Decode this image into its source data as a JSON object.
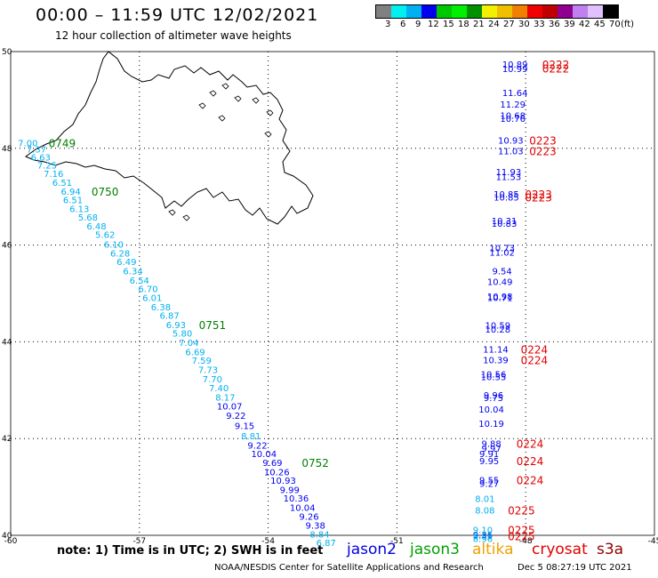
{
  "header": {
    "title": "00:00 – 11:59 UTC 12/02/2021",
    "subtitle": "12 hour collection of altimeter wave heights"
  },
  "legend": {
    "unit": "(ft)",
    "colors": [
      "#808080",
      "#00f0f0",
      "#00b0f0",
      "#0000f0",
      "#00c800",
      "#00f000",
      "#009000",
      "#f0f000",
      "#f0c000",
      "#f08000",
      "#f00000",
      "#c00000",
      "#900090",
      "#c080f0",
      "#e0c0ff",
      "#000000"
    ],
    "labels": [
      "3",
      "6",
      "9",
      "12",
      "15",
      "18",
      "21",
      "24",
      "27",
      "30",
      "33",
      "36",
      "39",
      "42",
      "45",
      "70"
    ]
  },
  "map": {
    "lat_range": [
      40,
      50
    ],
    "lon_range": [
      -60,
      -45
    ],
    "lat_ticks": [
      {
        "value": 50,
        "label": "50"
      },
      {
        "value": 48,
        "label": "48"
      },
      {
        "value": 46,
        "label": "46"
      },
      {
        "value": 44,
        "label": "44"
      },
      {
        "value": 42,
        "label": "42"
      },
      {
        "value": 40,
        "label": "40"
      }
    ],
    "lon_ticks": [
      {
        "value": -60,
        "label": "-60"
      },
      {
        "value": -57,
        "label": "-57"
      },
      {
        "value": -54,
        "label": "-54"
      },
      {
        "value": -51,
        "label": "-51"
      },
      {
        "value": -48,
        "label": "-48"
      },
      {
        "value": -45,
        "label": "-45"
      }
    ]
  },
  "tracks": {
    "west_cyan_color": "#00b0f0",
    "west_blue_color": "#0000f0",
    "east_blue_color": "#0000f0",
    "east_cyan_color": "#00b0f0",
    "west_cyan": [
      {
        "lat": 48.1,
        "lon": -59.6,
        "v": "7.00"
      },
      {
        "lat": 47.97,
        "lon": -59.4,
        "v": "7.37"
      },
      {
        "lat": 47.8,
        "lon": -59.3,
        "v": "6.63"
      },
      {
        "lat": 47.64,
        "lon": -59.15,
        "v": "7.25"
      },
      {
        "lat": 47.46,
        "lon": -59.0,
        "v": "7.16"
      },
      {
        "lat": 47.28,
        "lon": -58.8,
        "v": "6.51"
      },
      {
        "lat": 47.1,
        "lon": -58.6,
        "v": "6.94"
      },
      {
        "lat": 46.92,
        "lon": -58.55,
        "v": "6.51"
      },
      {
        "lat": 46.74,
        "lon": -58.4,
        "v": "6.13"
      },
      {
        "lat": 46.56,
        "lon": -58.2,
        "v": "5.68"
      },
      {
        "lat": 46.38,
        "lon": -58.0,
        "v": "6.48"
      },
      {
        "lat": 46.2,
        "lon": -57.8,
        "v": "5.62"
      },
      {
        "lat": 46.0,
        "lon": -57.6,
        "v": "6.10"
      },
      {
        "lat": 45.82,
        "lon": -57.45,
        "v": "6.28"
      },
      {
        "lat": 45.64,
        "lon": -57.3,
        "v": "6.49"
      },
      {
        "lat": 45.45,
        "lon": -57.15,
        "v": "6.34"
      },
      {
        "lat": 45.26,
        "lon": -57.0,
        "v": "6.54"
      },
      {
        "lat": 45.08,
        "lon": -56.8,
        "v": "6.70"
      },
      {
        "lat": 44.9,
        "lon": -56.7,
        "v": "6.01"
      },
      {
        "lat": 44.71,
        "lon": -56.5,
        "v": "6.38"
      },
      {
        "lat": 44.53,
        "lon": -56.3,
        "v": "6.87"
      },
      {
        "lat": 44.34,
        "lon": -56.15,
        "v": "6.93"
      },
      {
        "lat": 44.16,
        "lon": -56.0,
        "v": "5.80"
      },
      {
        "lat": 43.97,
        "lon": -55.85,
        "v": "7.04"
      },
      {
        "lat": 43.78,
        "lon": -55.7,
        "v": "6.69"
      },
      {
        "lat": 43.6,
        "lon": -55.55,
        "v": "7.59"
      },
      {
        "lat": 43.41,
        "lon": -55.4,
        "v": "7.73"
      },
      {
        "lat": 43.22,
        "lon": -55.3,
        "v": "7.70"
      },
      {
        "lat": 43.03,
        "lon": -55.15,
        "v": "7.40"
      },
      {
        "lat": 42.84,
        "lon": -55.0,
        "v": "8.17"
      },
      {
        "lat": 42.04,
        "lon": -54.4,
        "v": "8.81"
      }
    ],
    "west_blue": [
      {
        "lat": 42.66,
        "lon": -54.9,
        "v": "10.07"
      },
      {
        "lat": 42.46,
        "lon": -54.75,
        "v": "9.22"
      },
      {
        "lat": 42.25,
        "lon": -54.55,
        "v": "9.15"
      },
      {
        "lat": 41.85,
        "lon": -54.25,
        "v": "9.22"
      },
      {
        "lat": 41.67,
        "lon": -54.1,
        "v": "10.04"
      },
      {
        "lat": 41.49,
        "lon": -53.9,
        "v": "9.69"
      },
      {
        "lat": 41.3,
        "lon": -53.8,
        "v": "10.26"
      },
      {
        "lat": 41.12,
        "lon": -53.65,
        "v": "10.93"
      },
      {
        "lat": 40.93,
        "lon": -53.5,
        "v": "9.99"
      },
      {
        "lat": 40.75,
        "lon": -53.35,
        "v": "10.36"
      },
      {
        "lat": 40.56,
        "lon": -53.2,
        "v": "10.04"
      },
      {
        "lat": 40.38,
        "lon": -53.05,
        "v": "9.26"
      },
      {
        "lat": 40.19,
        "lon": -52.9,
        "v": "9.38"
      }
    ],
    "west_tail_cyan": [
      {
        "lat": 40.01,
        "lon": -52.8,
        "v": "8.84"
      },
      {
        "lat": 39.83,
        "lon": -52.65,
        "v": "6.87"
      }
    ],
    "east_blue": [
      {
        "lat": 49.72,
        "lon": -48.25,
        "v": "10.89"
      },
      {
        "lat": 49.63,
        "lon": -48.25,
        "v": "10.99"
      },
      {
        "lat": 49.14,
        "lon": -48.25,
        "v": "11.64"
      },
      {
        "lat": 48.9,
        "lon": -48.3,
        "v": "11.29"
      },
      {
        "lat": 48.67,
        "lon": -48.3,
        "v": "10.68"
      },
      {
        "lat": 48.6,
        "lon": -48.3,
        "v": "10.76"
      },
      {
        "lat": 48.15,
        "lon": -48.35,
        "v": "10.93"
      },
      {
        "lat": 47.93,
        "lon": -48.35,
        "v": "11.03"
      },
      {
        "lat": 47.5,
        "lon": -48.4,
        "v": "11.93"
      },
      {
        "lat": 47.4,
        "lon": -48.4,
        "v": "11.53"
      },
      {
        "lat": 47.04,
        "lon": -48.45,
        "v": "10.85"
      },
      {
        "lat": 46.98,
        "lon": -48.45,
        "v": "10.85"
      },
      {
        "lat": 46.49,
        "lon": -48.5,
        "v": "10.31"
      },
      {
        "lat": 46.43,
        "lon": -48.5,
        "v": "10.83"
      },
      {
        "lat": 45.93,
        "lon": -48.55,
        "v": "10.73"
      },
      {
        "lat": 45.84,
        "lon": -48.55,
        "v": "11.02"
      },
      {
        "lat": 45.45,
        "lon": -48.55,
        "v": "9.54"
      },
      {
        "lat": 45.23,
        "lon": -48.6,
        "v": "10.49"
      },
      {
        "lat": 44.93,
        "lon": -48.6,
        "v": "10.98"
      },
      {
        "lat": 44.9,
        "lon": -48.6,
        "v": "10.71"
      },
      {
        "lat": 44.33,
        "lon": -48.65,
        "v": "10.59"
      },
      {
        "lat": 44.25,
        "lon": -48.65,
        "v": "10.28"
      },
      {
        "lat": 43.83,
        "lon": -48.7,
        "v": "11.14"
      },
      {
        "lat": 43.61,
        "lon": -48.7,
        "v": "10.39"
      },
      {
        "lat": 43.32,
        "lon": -48.75,
        "v": "10.56"
      },
      {
        "lat": 43.26,
        "lon": -48.75,
        "v": "10.55"
      },
      {
        "lat": 42.89,
        "lon": -48.75,
        "v": "9.96"
      },
      {
        "lat": 42.83,
        "lon": -48.75,
        "v": "9.75"
      },
      {
        "lat": 42.59,
        "lon": -48.8,
        "v": "10.04"
      },
      {
        "lat": 42.3,
        "lon": -48.8,
        "v": "10.19"
      },
      {
        "lat": 41.88,
        "lon": -48.8,
        "v": "9.88"
      },
      {
        "lat": 41.78,
        "lon": -48.8,
        "v": "9.97"
      },
      {
        "lat": 41.67,
        "lon": -48.85,
        "v": "9.91"
      },
      {
        "lat": 41.53,
        "lon": -48.85,
        "v": "9.95"
      },
      {
        "lat": 41.13,
        "lon": -48.85,
        "v": "9.55"
      },
      {
        "lat": 41.06,
        "lon": -48.85,
        "v": "9.27"
      },
      {
        "lat": 40.0,
        "lon": -49.0,
        "v": "9.36"
      }
    ],
    "east_cyan": [
      {
        "lat": 40.74,
        "lon": -48.95,
        "v": "8.01"
      },
      {
        "lat": 40.51,
        "lon": -48.95,
        "v": "8.08"
      },
      {
        "lat": 40.1,
        "lon": -49.0,
        "v": "9.10"
      },
      {
        "lat": 39.97,
        "lon": -49.0,
        "v": "8.89"
      },
      {
        "lat": 39.92,
        "lon": -49.0,
        "v": "8.96"
      }
    ]
  },
  "time_marks": {
    "green_color": "#008000",
    "red_color": "#e00000",
    "green": [
      {
        "lat": 48.1,
        "lon": -58.8,
        "v": "0749"
      },
      {
        "lat": 47.1,
        "lon": -57.8,
        "v": "0750"
      },
      {
        "lat": 44.34,
        "lon": -55.3,
        "v": "0751"
      },
      {
        "lat": 41.49,
        "lon": -52.9,
        "v": "0752"
      }
    ],
    "red": [
      {
        "lat": 49.72,
        "lon": -47.3,
        "v": "0222"
      },
      {
        "lat": 49.64,
        "lon": -47.3,
        "v": "0222"
      },
      {
        "lat": 48.15,
        "lon": -47.6,
        "v": "0223"
      },
      {
        "lat": 47.93,
        "lon": -47.6,
        "v": "0223"
      },
      {
        "lat": 47.04,
        "lon": -47.7,
        "v": "0223"
      },
      {
        "lat": 46.98,
        "lon": -47.7,
        "v": "0223"
      },
      {
        "lat": 43.83,
        "lon": -47.8,
        "v": "0224"
      },
      {
        "lat": 43.61,
        "lon": -47.8,
        "v": "0224"
      },
      {
        "lat": 41.88,
        "lon": -47.9,
        "v": "0224"
      },
      {
        "lat": 41.53,
        "lon": -47.9,
        "v": "0224"
      },
      {
        "lat": 41.13,
        "lon": -47.9,
        "v": "0224"
      },
      {
        "lat": 40.51,
        "lon": -48.1,
        "v": "0225"
      },
      {
        "lat": 40.1,
        "lon": -48.1,
        "v": "0225"
      },
      {
        "lat": 39.97,
        "lon": -48.1,
        "v": "0225"
      }
    ]
  },
  "notes": {
    "text": "note:  1) Time is in UTC; 2) SWH is in feet",
    "satellites": [
      {
        "name": "jason2",
        "color": "#0000e0"
      },
      {
        "name": "jason3",
        "color": "#00a000"
      },
      {
        "name": "altika",
        "color": "#f0a000"
      },
      {
        "name": "cryosat",
        "color": "#e00000"
      },
      {
        "name": "s3a",
        "color": "#900000"
      }
    ]
  },
  "footer": {
    "credit": "NOAA/NESDIS Center for Satellite Applications and Research",
    "generated": "Dec  5 08:27:19 UTC 2021"
  }
}
